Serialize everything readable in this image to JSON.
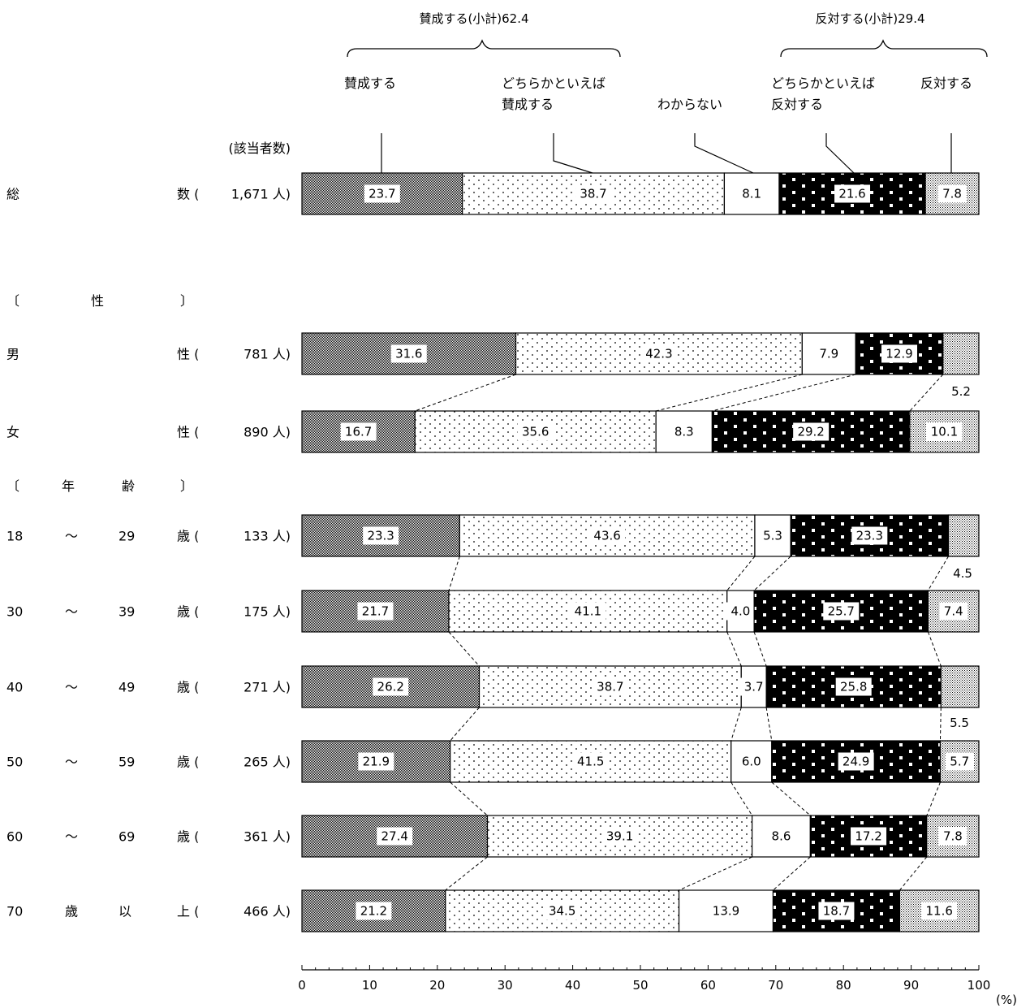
{
  "chart_data": {
    "type": "bar",
    "stacked": true,
    "orientation": "horizontal",
    "count_header": "(該当者数)",
    "groups": {
      "sex_header": [
        "〔",
        "性",
        "〕"
      ],
      "age_header": [
        "〔",
        "年",
        "齢",
        "〕"
      ]
    },
    "summary_labels": {
      "agree": "賛成する(小計)62.4",
      "oppose": "反対する(小計)29.4"
    },
    "series": [
      {
        "name": "賛成する",
        "name_lines": [
          "賛成する"
        ],
        "pattern": "p0"
      },
      {
        "name": "どちらかといえば賛成する",
        "name_lines": [
          "どちらかといえば",
          "賛成する"
        ],
        "pattern": "p1"
      },
      {
        "name": "わからない",
        "name_lines": [
          "わからない"
        ],
        "pattern": "p2"
      },
      {
        "name": "どちらかといえば反対する",
        "name_lines": [
          "どちらかといえば",
          "反対する"
        ],
        "pattern": "p3"
      },
      {
        "name": "反対する",
        "name_lines": [
          "反対する"
        ],
        "pattern": "p4"
      }
    ],
    "rows": [
      {
        "label_parts": [
          "総",
          "数 ("
        ],
        "count": "1,671 人)",
        "values": [
          23.7,
          38.7,
          8.1,
          21.6,
          7.8
        ],
        "labels": [
          "23.7",
          "38.7",
          "8.1",
          "21.6",
          "7.8"
        ]
      },
      {
        "label_parts": [
          "男",
          "性 ("
        ],
        "count": "781 人)",
        "values": [
          31.6,
          42.3,
          7.9,
          12.9,
          5.2
        ],
        "labels": [
          "31.6",
          "42.3",
          "7.9",
          "12.9",
          "5.2"
        ]
      },
      {
        "label_parts": [
          "女",
          "性 ("
        ],
        "count": "890 人)",
        "values": [
          16.7,
          35.6,
          8.3,
          29.2,
          10.1
        ],
        "labels": [
          "16.7",
          "35.6",
          "8.3",
          "29.2",
          "10.1"
        ]
      },
      {
        "label_parts": [
          "18",
          "〜",
          "29",
          "歳 ("
        ],
        "count": "133 人)",
        "values": [
          23.3,
          43.6,
          5.3,
          23.3,
          4.5
        ],
        "labels": [
          "23.3",
          "43.6",
          "5.3",
          "23.3",
          "4.5"
        ]
      },
      {
        "label_parts": [
          "30",
          "〜",
          "39",
          "歳 ("
        ],
        "count": "175 人)",
        "values": [
          21.7,
          41.1,
          4.0,
          25.7,
          7.4
        ],
        "labels": [
          "21.7",
          "41.1",
          "4.0",
          "25.7",
          "7.4"
        ]
      },
      {
        "label_parts": [
          "40",
          "〜",
          "49",
          "歳 ("
        ],
        "count": "271 人)",
        "values": [
          26.2,
          38.7,
          3.7,
          25.8,
          5.5
        ],
        "labels": [
          "26.2",
          "38.7",
          "3.7",
          "25.8",
          "5.5"
        ]
      },
      {
        "label_parts": [
          "50",
          "〜",
          "59",
          "歳 ("
        ],
        "count": "265 人)",
        "values": [
          21.9,
          41.5,
          6.0,
          24.9,
          5.7
        ],
        "labels": [
          "21.9",
          "41.5",
          "6.0",
          "24.9",
          "5.7"
        ]
      },
      {
        "label_parts": [
          "60",
          "〜",
          "69",
          "歳 ("
        ],
        "count": "361 人)",
        "values": [
          27.4,
          39.1,
          8.6,
          17.2,
          7.8
        ],
        "labels": [
          "27.4",
          "39.1",
          "8.6",
          "17.2",
          "7.8"
        ]
      },
      {
        "label_parts": [
          "70",
          "歳",
          "以",
          "上 ("
        ],
        "count": "466 人)",
        "values": [
          21.2,
          34.5,
          13.9,
          18.7,
          11.6
        ],
        "labels": [
          "21.2",
          "34.5",
          "13.9",
          "18.7",
          "11.6"
        ]
      }
    ],
    "xlim": [
      0,
      100
    ],
    "xticks": [
      0,
      10,
      20,
      30,
      40,
      50,
      60,
      70,
      80,
      90,
      100
    ],
    "xunit": "(%)",
    "grid": false
  }
}
